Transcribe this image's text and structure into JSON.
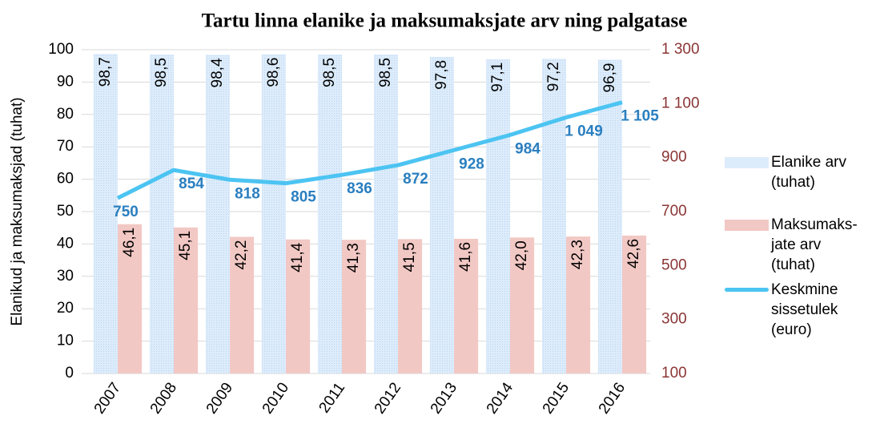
{
  "chart_data": {
    "type": "bar",
    "title": "Tartu linna elanike ja maksumaksjate arv ning palgatase",
    "y_label": "Elanikud ja maksumaksjad (tuhat)",
    "categories": [
      "2007",
      "2008",
      "2009",
      "2010",
      "2011",
      "2012",
      "2013",
      "2014",
      "2015",
      "2016"
    ],
    "series": [
      {
        "name": "Elanike arv (tuhat)",
        "color": "#ddecfb",
        "type": "bar",
        "values": [
          98.7,
          98.5,
          98.4,
          98.6,
          98.5,
          98.5,
          97.8,
          97.1,
          97.2,
          96.9
        ],
        "value_labels": [
          "98,7",
          "98,5",
          "98,4",
          "98,6",
          "98,5",
          "98,5",
          "97,8",
          "97,1",
          "97,2",
          "96,9"
        ]
      },
      {
        "name": "Maksumaks- jate arv (tuhat)",
        "color": "#f2c8c4",
        "type": "bar",
        "values": [
          46.1,
          45.1,
          42.2,
          41.4,
          41.3,
          41.5,
          41.6,
          42.0,
          42.3,
          42.6
        ],
        "value_labels": [
          "46,1",
          "45,1",
          "42,2",
          "41,4",
          "41,3",
          "41,5",
          "41,6",
          "42,0",
          "42,3",
          "42,6"
        ]
      },
      {
        "name": "Keskmine sissetulek (euro)",
        "color": "#4cc4f2",
        "type": "line",
        "axis": "y2",
        "values": [
          750,
          854,
          818,
          805,
          836,
          872,
          928,
          984,
          1049,
          1105
        ],
        "value_labels": [
          "750",
          "854",
          "818",
          "805",
          "836",
          "872",
          "928",
          "984",
          "1 049",
          "1 105"
        ]
      }
    ],
    "ylim": [
      0,
      100
    ],
    "yticks": [
      0,
      10,
      20,
      30,
      40,
      50,
      60,
      70,
      80,
      90,
      100
    ],
    "y2lim": [
      100,
      1300
    ],
    "y2ticks": [
      100,
      300,
      500,
      700,
      900,
      {
        "value": 1100,
        "label": "1 100"
      },
      {
        "value": 1300,
        "label": "1 300"
      }
    ],
    "line_label_color": "#2a7fc0",
    "y2_color": "#8b3535"
  }
}
